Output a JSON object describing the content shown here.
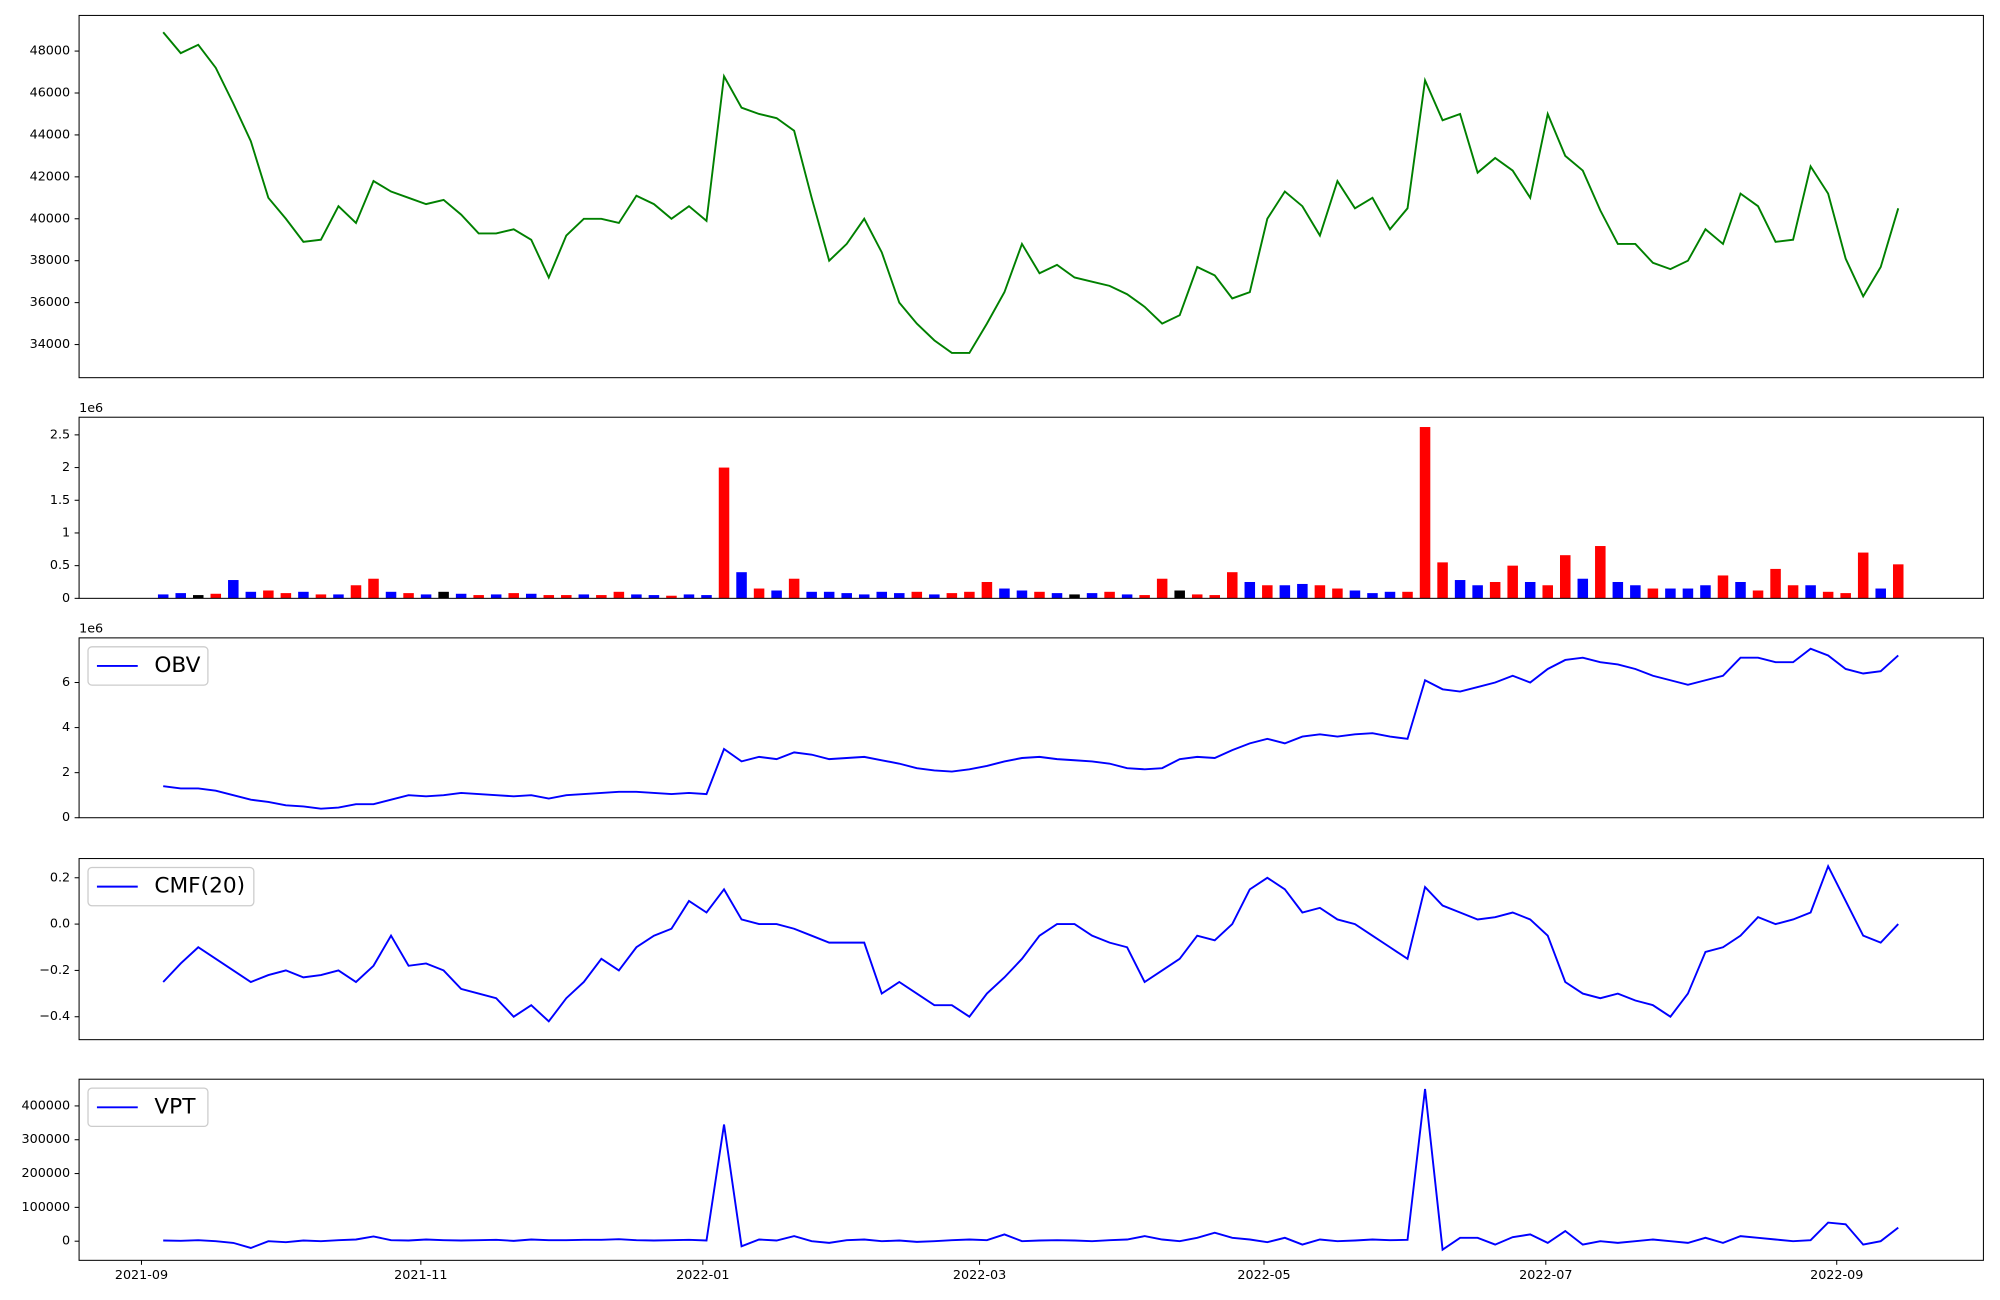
{
  "chart_data": [
    {
      "type": "line",
      "xlim": [
        -4.8,
        103.86
      ],
      "ylim": [
        32420,
        49700
      ],
      "yticks": [
        34000,
        36000,
        38000,
        40000,
        42000,
        44000,
        46000,
        48000
      ],
      "color": "green",
      "values": [
        48900,
        47900,
        48300,
        47200,
        45500,
        43700,
        41000,
        40000,
        38900,
        39000,
        40600,
        39800,
        41800,
        41300,
        41000,
        40700,
        40900,
        40200,
        39300,
        39300,
        39500,
        39000,
        37200,
        39200,
        40000,
        40000,
        39800,
        41100,
        40700,
        40000,
        40600,
        39900,
        46800,
        45300,
        45000,
        44800,
        44200,
        41000,
        38000,
        38800,
        40000,
        38400,
        36000,
        35000,
        34200,
        33600,
        33600,
        35000,
        36500,
        38800,
        37400,
        37800,
        37200,
        37000,
        36800,
        36400,
        35800,
        35000,
        35400,
        37700,
        37300,
        36200,
        36500,
        40000,
        41300,
        40600,
        39200,
        41800,
        40500,
        41000,
        39500,
        40500,
        46600,
        44700,
        45000,
        42200,
        42900,
        42300,
        41000,
        45000,
        43000,
        42300,
        40400,
        38800,
        38800,
        37900,
        37600,
        38000,
        39500,
        38800,
        41200,
        40600,
        38900,
        39000,
        42500,
        41200,
        38100,
        36300,
        37700,
        40500
      ]
    },
    {
      "type": "bar",
      "xlim": [
        -4.8,
        103.86
      ],
      "ylim": [
        0,
        2.77
      ],
      "yticks": [
        0.0,
        0.5,
        1.0,
        1.5,
        2.0,
        2.5
      ],
      "offset_label": "1e6",
      "values": [
        0.06,
        0.08,
        0.05,
        0.07,
        0.28,
        0.1,
        0.12,
        0.08,
        0.1,
        0.06,
        0.06,
        0.2,
        0.3,
        0.1,
        0.08,
        0.06,
        0.1,
        0.07,
        0.05,
        0.06,
        0.08,
        0.07,
        0.05,
        0.05,
        0.06,
        0.05,
        0.1,
        0.06,
        0.05,
        0.04,
        0.06,
        0.05,
        2.0,
        0.4,
        0.15,
        0.12,
        0.3,
        0.1,
        0.1,
        0.08,
        0.06,
        0.1,
        0.08,
        0.1,
        0.06,
        0.08,
        0.1,
        0.25,
        0.15,
        0.12,
        0.1,
        0.08,
        0.06,
        0.08,
        0.1,
        0.06,
        0.05,
        0.3,
        0.12,
        0.06,
        0.05,
        0.4,
        0.25,
        0.2,
        0.2,
        0.22,
        0.2,
        0.15,
        0.12,
        0.08,
        0.1,
        0.1,
        2.62,
        0.55,
        0.28,
        0.2,
        0.25,
        0.5,
        0.25,
        0.2,
        0.66,
        0.3,
        0.8,
        0.25,
        0.2,
        0.15,
        0.15,
        0.15,
        0.2,
        0.35,
        0.25,
        0.12,
        0.45,
        0.2,
        0.2,
        0.1,
        0.08,
        0.7,
        0.15,
        0.52
      ],
      "colors": [
        "blue",
        "blue",
        "black",
        "red",
        "blue",
        "blue",
        "red",
        "red",
        "blue",
        "red",
        "blue",
        "red",
        "red",
        "blue",
        "red",
        "blue",
        "black",
        "blue",
        "red",
        "blue",
        "red",
        "blue",
        "red",
        "red",
        "blue",
        "red",
        "red",
        "blue",
        "blue",
        "red",
        "blue",
        "blue",
        "red",
        "blue",
        "red",
        "blue",
        "red",
        "blue",
        "blue",
        "blue",
        "blue",
        "blue",
        "blue",
        "red",
        "blue",
        "red",
        "red",
        "red",
        "blue",
        "blue",
        "red",
        "blue",
        "black",
        "blue",
        "red",
        "blue",
        "red",
        "red",
        "black",
        "red",
        "red",
        "red",
        "blue",
        "red",
        "blue",
        "blue",
        "red",
        "red",
        "blue",
        "blue",
        "blue",
        "red",
        "red",
        "red",
        "blue",
        "blue",
        "red",
        "red",
        "blue",
        "red",
        "red",
        "blue",
        "red",
        "blue",
        "blue",
        "red",
        "blue",
        "blue",
        "blue",
        "red",
        "blue",
        "red",
        "red",
        "red",
        "blue",
        "red",
        "red",
        "red",
        "blue",
        "red"
      ]
    },
    {
      "type": "line",
      "xlim": [
        -4.8,
        103.86
      ],
      "ylim": [
        0,
        7.98
      ],
      "yticks": [
        0,
        2,
        4,
        6
      ],
      "offset_label": "1e6",
      "legend": "upper left",
      "series": [
        {
          "name": "OBV",
          "color": "blue",
          "values": [
            1.4,
            1.3,
            1.3,
            1.2,
            1.0,
            0.8,
            0.7,
            0.55,
            0.5,
            0.4,
            0.45,
            0.6,
            0.6,
            0.8,
            1.0,
            0.95,
            1.0,
            1.1,
            1.05,
            1.0,
            0.95,
            1.0,
            0.85,
            1.0,
            1.05,
            1.1,
            1.15,
            1.15,
            1.1,
            1.05,
            1.1,
            1.05,
            3.05,
            2.5,
            2.7,
            2.6,
            2.9,
            2.8,
            2.6,
            2.65,
            2.7,
            2.55,
            2.4,
            2.2,
            2.1,
            2.05,
            2.15,
            2.3,
            2.5,
            2.65,
            2.7,
            2.6,
            2.55,
            2.5,
            2.4,
            2.2,
            2.15,
            2.2,
            2.6,
            2.7,
            2.65,
            3.0,
            3.3,
            3.5,
            3.3,
            3.6,
            3.7,
            3.6,
            3.7,
            3.75,
            3.6,
            3.5,
            6.1,
            5.7,
            5.6,
            5.8,
            6.0,
            6.3,
            6.0,
            6.6,
            7.0,
            7.1,
            6.9,
            6.8,
            6.6,
            6.3,
            6.1,
            5.9,
            6.1,
            6.3,
            7.1,
            7.1,
            6.9,
            6.9,
            7.5,
            7.2,
            6.6,
            6.4,
            6.5,
            7.2
          ]
        }
      ]
    },
    {
      "type": "line",
      "xlim": [
        -4.8,
        103.86
      ],
      "ylim": [
        -0.499,
        0.283
      ],
      "legend": "upper left",
      "yticks": [
        {
          "value": -0.4,
          "label": "−0.4"
        },
        {
          "value": -0.2,
          "label": "−0.2"
        },
        {
          "value": 0,
          "label": "0.0"
        },
        0.2
      ],
      "series": [
        {
          "name": "CMF(20)",
          "color": "blue",
          "values": [
            -0.25,
            -0.17,
            -0.1,
            -0.15,
            -0.2,
            -0.25,
            -0.22,
            -0.2,
            -0.23,
            -0.22,
            -0.2,
            -0.25,
            -0.18,
            -0.05,
            -0.18,
            -0.17,
            -0.2,
            -0.28,
            -0.3,
            -0.32,
            -0.4,
            -0.35,
            -0.42,
            -0.32,
            -0.25,
            -0.15,
            -0.2,
            -0.1,
            -0.05,
            -0.02,
            0.1,
            0.05,
            0.15,
            0.02,
            0.0,
            0.0,
            -0.02,
            -0.05,
            -0.08,
            -0.08,
            -0.08,
            -0.3,
            -0.25,
            -0.3,
            -0.35,
            -0.35,
            -0.4,
            -0.3,
            -0.23,
            -0.15,
            -0.05,
            0.0,
            0.0,
            -0.05,
            -0.08,
            -0.1,
            -0.25,
            -0.2,
            -0.15,
            -0.05,
            -0.07,
            0.0,
            0.15,
            0.2,
            0.15,
            0.05,
            0.07,
            0.02,
            0.0,
            -0.05,
            -0.1,
            -0.15,
            0.16,
            0.08,
            0.05,
            0.02,
            0.03,
            0.05,
            0.02,
            -0.05,
            -0.25,
            -0.3,
            -0.32,
            -0.3,
            -0.33,
            -0.35,
            -0.4,
            -0.3,
            -0.12,
            -0.1,
            -0.05,
            0.03,
            0.0,
            0.02,
            0.05,
            0.25,
            0.1,
            -0.05,
            -0.08,
            0.0
          ]
        }
      ]
    },
    {
      "type": "line",
      "xlim": [
        -4.8,
        103.86
      ],
      "ylim": [
        -56600,
        479000
      ],
      "legend": "upper left",
      "yticks": [
        0,
        100000,
        200000,
        300000,
        400000
      ],
      "xticks": [
        {
          "value": -1.24,
          "label": "2021-09"
        },
        {
          "value": 14.7,
          "label": "2021-11"
        },
        {
          "value": 30.79,
          "label": "2022-01"
        },
        {
          "value": 46.58,
          "label": "2022-03"
        },
        {
          "value": 62.81,
          "label": "2022-05"
        },
        {
          "value": 78.89,
          "label": "2022-07"
        },
        {
          "value": 95.49,
          "label": "2022-09"
        }
      ],
      "series": [
        {
          "name": "VPT",
          "color": "blue",
          "values": [
            2000,
            1000,
            3000,
            0,
            -5000,
            -20000,
            0,
            -3000,
            2000,
            0,
            3000,
            5000,
            14000,
            3000,
            2000,
            5000,
            3000,
            2000,
            3000,
            4000,
            1000,
            5000,
            3000,
            3000,
            4000,
            4000,
            6000,
            3000,
            2000,
            3000,
            4000,
            2000,
            345000,
            -15000,
            5000,
            2000,
            15000,
            0,
            -5000,
            3000,
            5000,
            0,
            2000,
            -2000,
            0,
            3000,
            5000,
            3000,
            20000,
            0,
            2000,
            3000,
            2000,
            0,
            3000,
            5000,
            15000,
            5000,
            0,
            10000,
            25000,
            10000,
            5000,
            -3000,
            10000,
            -10000,
            5000,
            0,
            2000,
            5000,
            3000,
            4000,
            450000,
            -25000,
            10000,
            10000,
            -10000,
            12000,
            20000,
            -5000,
            30000,
            -10000,
            0,
            -5000,
            0,
            5000,
            0,
            -5000,
            10000,
            -5000,
            15000,
            10000,
            5000,
            0,
            3000,
            55000,
            50000,
            -10000,
            0,
            40000
          ]
        }
      ]
    }
  ]
}
